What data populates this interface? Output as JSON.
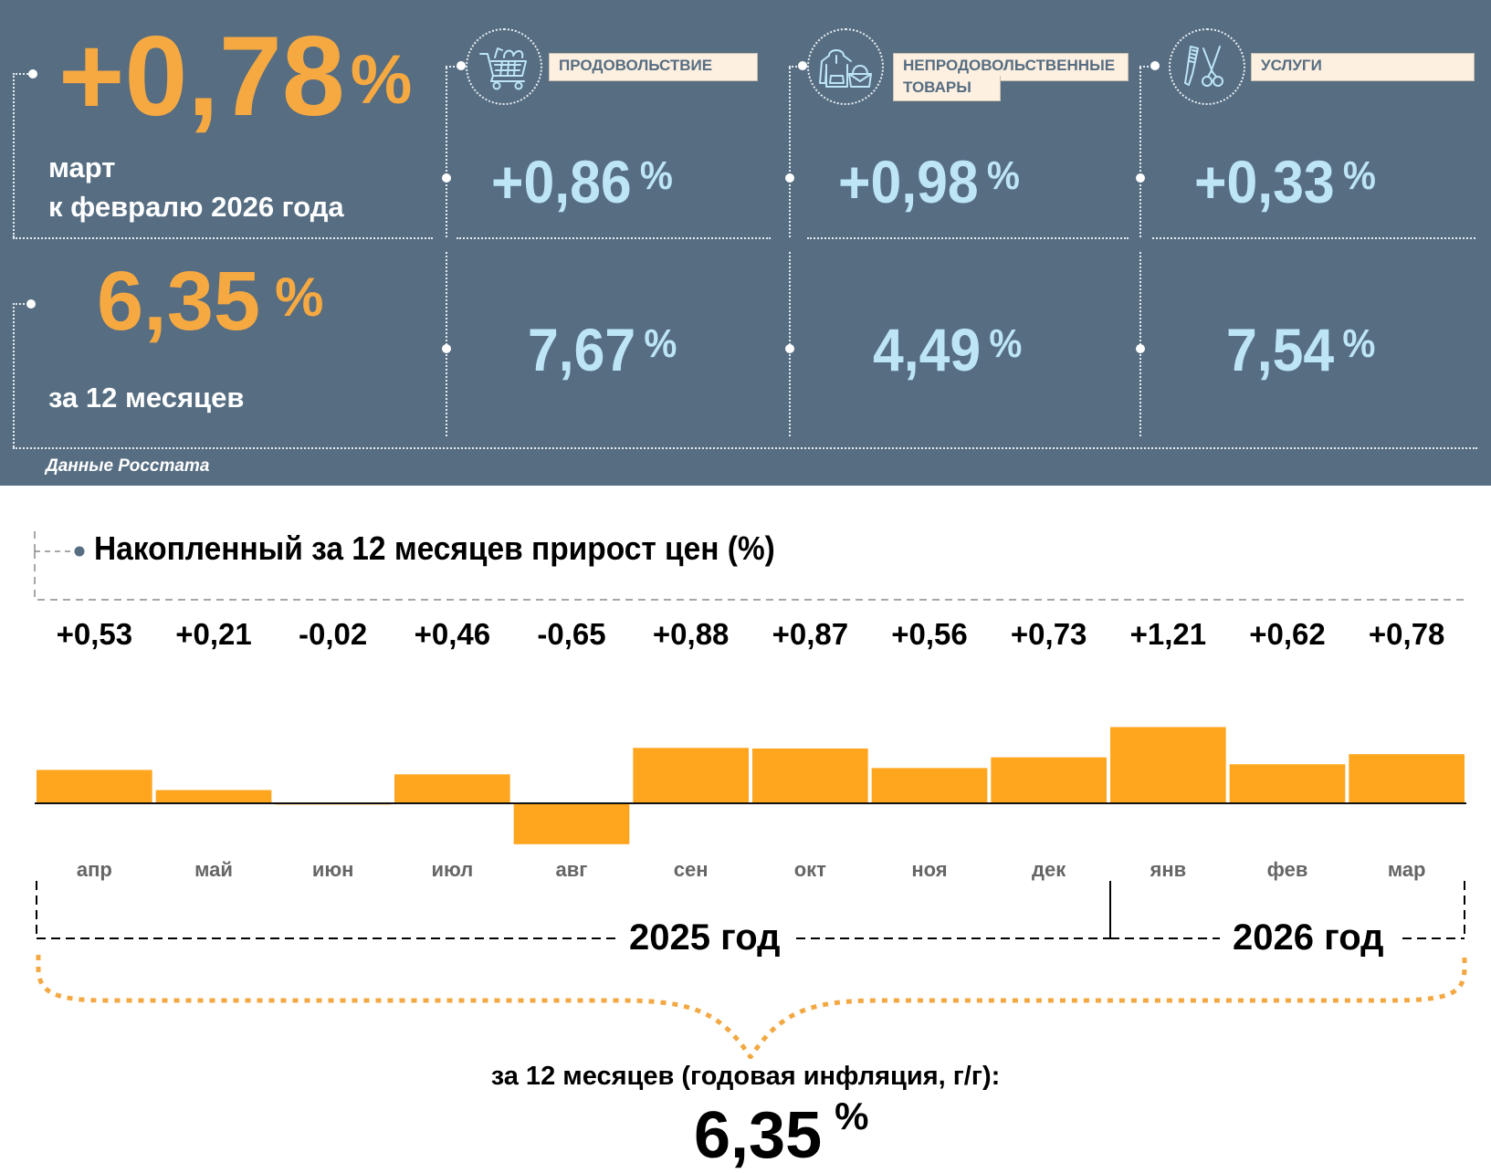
{
  "panel": {
    "monthly": {
      "value": "+0,78",
      "percent_sign": "%",
      "line1": "март",
      "line2": "к февралю 2026 года"
    },
    "annual": {
      "value": "6,35",
      "percent_sign": "%",
      "caption": "за 12 месяцев"
    },
    "categories": [
      {
        "icon": "shopping-cart-icon",
        "label": "ПРОДОВОЛЬСТВИЕ",
        "monthly": "+0,86",
        "annual": "7,67",
        "percent_sign": "%"
      },
      {
        "icon": "clothing-bag-icon",
        "label_line1": "НЕПРОДОВОЛЬСТВЕННЫЕ",
        "label_line2": "ТОВАРЫ",
        "monthly": "+0,98",
        "annual": "4,49",
        "percent_sign": "%"
      },
      {
        "icon": "comb-scissors-icon",
        "label": "УСЛУГИ",
        "monthly": "+0,33",
        "annual": "7,54",
        "percent_sign": "%"
      }
    ],
    "source": "Данные Росстата"
  },
  "colors": {
    "panel_bg": "#566d82",
    "accent_orange": "#f7a941",
    "bar_orange": "#ffa61e",
    "value_blue": "#bde5f5",
    "label_bg": "#fdf0e0"
  },
  "chart_data": {
    "type": "bar",
    "title": "Накопленный за 12 месяцев прирост цен (%)",
    "categories": [
      "апр",
      "май",
      "июн",
      "июл",
      "авг",
      "сен",
      "окт",
      "ноя",
      "дек",
      "янв",
      "фев",
      "мар"
    ],
    "values": [
      0.53,
      0.21,
      -0.02,
      0.46,
      -0.65,
      0.88,
      0.87,
      0.56,
      0.73,
      1.21,
      0.62,
      0.78
    ],
    "value_labels": [
      "+0,53",
      "+0,21",
      "-0,02",
      "+0,46",
      "-0,65",
      "+0,88",
      "+0,87",
      "+0,56",
      "+0,73",
      "+1,21",
      "+0,62",
      "+0,78"
    ],
    "xlabel": "",
    "ylabel": "",
    "ylim": [
      -0.65,
      1.21
    ],
    "grid": false,
    "years": [
      {
        "label": "2025 год",
        "months": [
          "апр",
          "май",
          "июн",
          "июл",
          "авг",
          "сен",
          "окт",
          "ноя",
          "дек"
        ]
      },
      {
        "label": "2026 год",
        "months": [
          "янв",
          "фев",
          "мар"
        ]
      }
    ],
    "summary_caption": "за 12 месяцев (годовая инфляция, г/г):",
    "summary_value": "6,35",
    "summary_percent_sign": "%"
  }
}
